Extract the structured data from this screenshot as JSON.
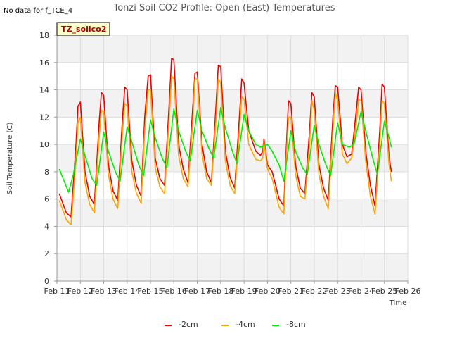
{
  "chart_data": {
    "type": "line",
    "title": "Tonzi Soil CO2 Profile: Open (East) Temperatures",
    "no_data_note": "No data for f_TCE_4",
    "box_label": "TZ_soilco2",
    "xlabel": "Time",
    "ylabel": "Soil Temperature (C)",
    "xlim": [
      11,
      26
    ],
    "ylim": [
      0,
      18
    ],
    "x_ticks": [
      11,
      12,
      13,
      14,
      15,
      16,
      17,
      18,
      19,
      20,
      21,
      22,
      23,
      24,
      25,
      26
    ],
    "x_tick_labels": [
      "Feb 11",
      "Feb 12",
      "Feb 13",
      "Feb 14",
      "Feb 15",
      "Feb 16",
      "Feb 17",
      "Feb 18",
      "Feb 19",
      "Feb 20",
      "Feb 21",
      "Feb 22",
      "Feb 23",
      "Feb 24",
      "Feb 25",
      "Feb 26"
    ],
    "y_ticks": [
      0,
      2,
      4,
      6,
      8,
      10,
      12,
      14,
      16,
      18
    ],
    "grid": true,
    "legend_position": "bottom-center",
    "series": [
      {
        "name": "-2cm",
        "color": "#ee0000",
        "x": [
          11.1,
          11.4,
          11.6,
          11.8,
          11.9,
          12.0,
          12.2,
          12.4,
          12.6,
          12.8,
          12.9,
          13.0,
          13.2,
          13.4,
          13.6,
          13.8,
          13.9,
          14.0,
          14.2,
          14.4,
          14.6,
          14.75,
          14.9,
          15.0,
          15.2,
          15.4,
          15.6,
          15.8,
          15.9,
          16.0,
          16.2,
          16.4,
          16.6,
          16.8,
          16.9,
          17.0,
          17.2,
          17.4,
          17.6,
          17.8,
          17.9,
          18.0,
          18.2,
          18.4,
          18.6,
          18.8,
          18.9,
          19.0,
          19.2,
          19.5,
          19.7,
          19.8,
          19.85,
          20.0,
          20.2,
          20.5,
          20.7,
          20.8,
          20.9,
          21.0,
          21.2,
          21.4,
          21.6,
          21.8,
          21.9,
          22.0,
          22.2,
          22.4,
          22.6,
          22.8,
          22.9,
          23.0,
          23.2,
          23.4,
          23.6,
          23.8,
          23.9,
          24.0,
          24.2,
          24.4,
          24.6,
          24.8,
          24.9,
          25.0,
          25.2,
          25.3
        ],
        "values": [
          6.4,
          5.0,
          4.7,
          9.5,
          12.8,
          13.1,
          8.0,
          6.2,
          5.6,
          11.5,
          13.8,
          13.6,
          8.5,
          6.6,
          5.9,
          11.8,
          14.2,
          14.0,
          8.8,
          7.0,
          6.2,
          12.0,
          15.0,
          15.1,
          9.0,
          7.5,
          7.0,
          13.0,
          16.3,
          16.2,
          10.0,
          8.2,
          7.2,
          12.5,
          15.2,
          15.3,
          10.0,
          8.0,
          7.2,
          12.8,
          15.8,
          15.7,
          9.5,
          7.6,
          6.8,
          12.0,
          14.8,
          14.5,
          11.0,
          9.5,
          9.2,
          9.5,
          10.4,
          8.5,
          8.0,
          6.0,
          5.5,
          9.5,
          13.2,
          13.0,
          8.5,
          6.8,
          6.4,
          11.0,
          13.8,
          13.5,
          8.5,
          6.8,
          5.9,
          12.0,
          14.3,
          14.2,
          10.0,
          9.1,
          9.3,
          12.5,
          14.2,
          14.0,
          9.5,
          7.0,
          5.5,
          11.0,
          14.4,
          14.2,
          9.0,
          8.0
        ],
        "mark": "line"
      },
      {
        "name": "-4cm",
        "color": "#ffa500",
        "x": [
          11.1,
          11.4,
          11.6,
          11.8,
          11.9,
          12.0,
          12.2,
          12.4,
          12.6,
          12.8,
          12.9,
          13.0,
          13.2,
          13.4,
          13.6,
          13.8,
          13.9,
          14.0,
          14.2,
          14.4,
          14.6,
          14.75,
          14.9,
          15.0,
          15.2,
          15.4,
          15.6,
          15.8,
          15.9,
          16.0,
          16.2,
          16.4,
          16.6,
          16.8,
          16.9,
          17.0,
          17.2,
          17.4,
          17.6,
          17.8,
          17.9,
          18.0,
          18.2,
          18.4,
          18.6,
          18.8,
          18.9,
          19.0,
          19.2,
          19.5,
          19.7,
          19.8,
          19.85,
          20.0,
          20.2,
          20.5,
          20.7,
          20.8,
          20.9,
          21.0,
          21.2,
          21.4,
          21.6,
          21.8,
          21.9,
          22.0,
          22.2,
          22.4,
          22.6,
          22.8,
          22.9,
          23.0,
          23.2,
          23.4,
          23.6,
          23.8,
          23.9,
          24.0,
          24.2,
          24.4,
          24.6,
          24.8,
          24.9,
          25.0,
          25.2,
          25.3
        ],
        "values": [
          5.9,
          4.5,
          4.1,
          8.5,
          11.6,
          12.0,
          7.2,
          5.6,
          5.0,
          10.5,
          12.5,
          12.4,
          7.8,
          6.0,
          5.3,
          10.8,
          13.0,
          12.8,
          8.0,
          6.4,
          5.7,
          11.0,
          14.0,
          14.0,
          8.3,
          6.9,
          6.4,
          12.0,
          15.0,
          14.8,
          9.2,
          7.5,
          6.9,
          11.5,
          14.8,
          14.8,
          9.3,
          7.5,
          7.0,
          11.8,
          14.8,
          14.5,
          8.8,
          7.0,
          6.4,
          11.0,
          13.5,
          13.3,
          10.0,
          8.9,
          8.8,
          9.0,
          10.2,
          8.2,
          7.5,
          5.4,
          4.9,
          8.8,
          12.0,
          12.0,
          7.8,
          6.2,
          6.0,
          10.0,
          13.2,
          12.5,
          7.8,
          6.2,
          5.3,
          11.0,
          13.8,
          13.2,
          9.3,
          8.6,
          9.0,
          11.5,
          13.3,
          13.2,
          8.8,
          6.2,
          4.9,
          10.0,
          13.2,
          13.0,
          8.5,
          7.3
        ],
        "mark": "line"
      },
      {
        "name": "-8cm",
        "color": "#00ee00",
        "x": [
          11.1,
          11.5,
          11.7,
          12.0,
          12.2,
          12.5,
          12.7,
          13.0,
          13.2,
          13.5,
          13.7,
          14.0,
          14.2,
          14.5,
          14.7,
          15.0,
          15.2,
          15.5,
          15.7,
          16.0,
          16.2,
          16.5,
          16.7,
          17.0,
          17.2,
          17.5,
          17.7,
          18.0,
          18.2,
          18.5,
          18.7,
          19.0,
          19.2,
          19.5,
          19.7,
          20.0,
          20.2,
          20.5,
          20.7,
          21.0,
          21.2,
          21.5,
          21.7,
          22.0,
          22.2,
          22.5,
          22.7,
          23.0,
          23.2,
          23.5,
          23.7,
          24.0,
          24.2,
          24.5,
          24.7,
          25.0,
          25.2,
          25.3
        ],
        "values": [
          8.2,
          6.5,
          7.8,
          10.4,
          9.2,
          7.5,
          7.0,
          10.9,
          9.5,
          8.0,
          7.3,
          11.3,
          10.2,
          8.5,
          7.7,
          11.8,
          10.5,
          9.0,
          8.3,
          12.6,
          11.0,
          9.5,
          8.8,
          12.5,
          11.0,
          9.7,
          9.0,
          12.7,
          11.2,
          9.5,
          8.6,
          12.2,
          11.0,
          10.0,
          9.8,
          10.0,
          9.5,
          8.5,
          7.3,
          11.0,
          9.5,
          8.3,
          7.8,
          11.4,
          10.0,
          8.5,
          7.7,
          11.6,
          10.0,
          9.8,
          10.0,
          12.4,
          11.0,
          9.0,
          7.8,
          11.7,
          10.5,
          9.8
        ],
        "mark": "line"
      }
    ]
  }
}
